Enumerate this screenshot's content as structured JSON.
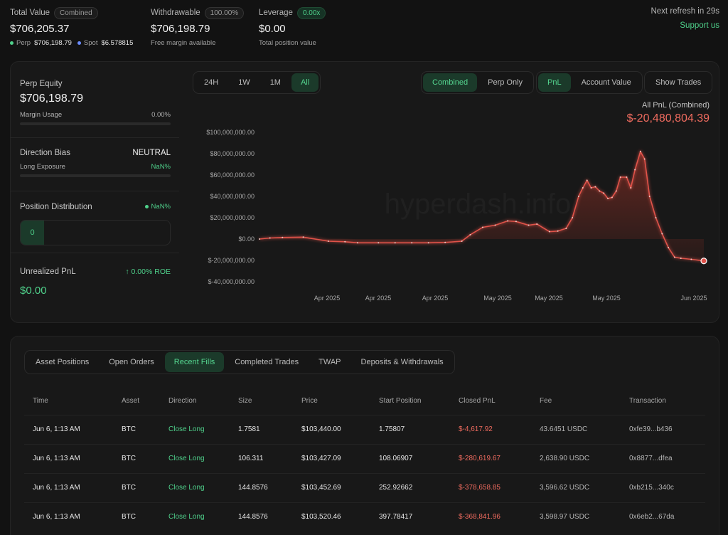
{
  "summary": {
    "total_value": {
      "label": "Total Value",
      "badge": "Combined",
      "value": "$706,205.37",
      "perp_label": "Perp",
      "perp_value": "$706,198.79",
      "spot_label": "Spot",
      "spot_value": "$6.578815"
    },
    "withdrawable": {
      "label": "Withdrawable",
      "badge": "100.00%",
      "value": "$706,198.79",
      "sub": "Free margin available"
    },
    "leverage": {
      "label": "Leverage",
      "badge": "0.00x",
      "value": "$0.00",
      "sub": "Total position value"
    },
    "refresh": "Next refresh in 29s",
    "support": "Support us"
  },
  "side": {
    "perp_equity_label": "Perp Equity",
    "perp_equity_value": "$706,198.79",
    "margin_usage_label": "Margin Usage",
    "margin_usage_value": "0.00%",
    "direction_bias_label": "Direction Bias",
    "direction_bias_value": "NEUTRAL",
    "long_exposure_label": "Long Exposure",
    "long_exposure_value": "NaN%",
    "position_distribution_label": "Position Distribution",
    "position_distribution_value": "NaN%",
    "distribution_count": "0",
    "unrealized_label": "Unrealized PnL",
    "roe": "0.00% ROE",
    "unrealized_value": "$0.00"
  },
  "controls": {
    "ranges": [
      "24H",
      "1W",
      "1M",
      "All"
    ],
    "mode": [
      "Combined",
      "Perp Only"
    ],
    "metric": [
      "PnL",
      "Account Value"
    ],
    "show_trades": "Show Trades"
  },
  "chart_data": {
    "type": "area",
    "title": "All PnL (Combined)",
    "headline_value": "$-20,480,804.39",
    "watermark": "hyperdash.info",
    "y_ticks": [
      "$100,000,000.00",
      "$80,000,000.00",
      "$60,000,000.00",
      "$40,000,000.00",
      "$20,000,000.00",
      "$0.00",
      "$-20,000,000.00",
      "$-40,000,000.00"
    ],
    "x_ticks": [
      "Apr 2025",
      "Apr 2025",
      "Apr 2025",
      "May 2025",
      "May 2025",
      "May 2025",
      "Jun 2025"
    ],
    "ylim": [
      -40000000,
      100000000
    ],
    "series": [
      {
        "values": [
          0,
          1000000,
          1500000,
          1800000,
          -2000000,
          -2500000,
          -3500000,
          -3500000,
          -3500000,
          -3500000,
          -3500000,
          -3200000,
          -2000000,
          4000000,
          11000000,
          13000000,
          17000000,
          16500000,
          13000000,
          14000000,
          7000000,
          7500000,
          10000000,
          20000000,
          40000000,
          48000000,
          55000000,
          48000000,
          49000000,
          45000000,
          43000000,
          38000000,
          39000000,
          45000000,
          58000000,
          58000000,
          48000000,
          65000000,
          82000000,
          75000000,
          40000000,
          20000000,
          5000000,
          -8000000,
          -17000000,
          -18000000,
          -19000000,
          -20480804
        ]
      }
    ]
  },
  "tabs": [
    "Asset Positions",
    "Open Orders",
    "Recent Fills",
    "Completed Trades",
    "TWAP",
    "Deposits & Withdrawals"
  ],
  "active_tab": "Recent Fills",
  "table": {
    "headers": [
      "Time",
      "Asset",
      "Direction",
      "Size",
      "Price",
      "Start Position",
      "Closed PnL",
      "Fee",
      "Transaction"
    ],
    "rows": [
      [
        "Jun 6, 1:13 AM",
        "BTC",
        "Close Long",
        "1.7581",
        "$103,440.00",
        "1.75807",
        "$-4,617.92",
        "43.6451 USDC",
        "0xfe39...b436"
      ],
      [
        "Jun 6, 1:13 AM",
        "BTC",
        "Close Long",
        "106.311",
        "$103,427.09",
        "108.06907",
        "$-280,619.67",
        "2,638.90 USDC",
        "0x8877...dfea"
      ],
      [
        "Jun 6, 1:13 AM",
        "BTC",
        "Close Long",
        "144.8576",
        "$103,452.69",
        "252.92662",
        "$-378,658.85",
        "3,596.62 USDC",
        "0xb215...340c"
      ],
      [
        "Jun 6, 1:13 AM",
        "BTC",
        "Close Long",
        "144.8576",
        "$103,520.46",
        "397.78417",
        "$-368,841.96",
        "3,598.97 USDC",
        "0x6eb2...67da"
      ]
    ]
  },
  "colors": {
    "accent": "#4fd18b",
    "negative": "#ef5b5b",
    "background": "#121212"
  }
}
